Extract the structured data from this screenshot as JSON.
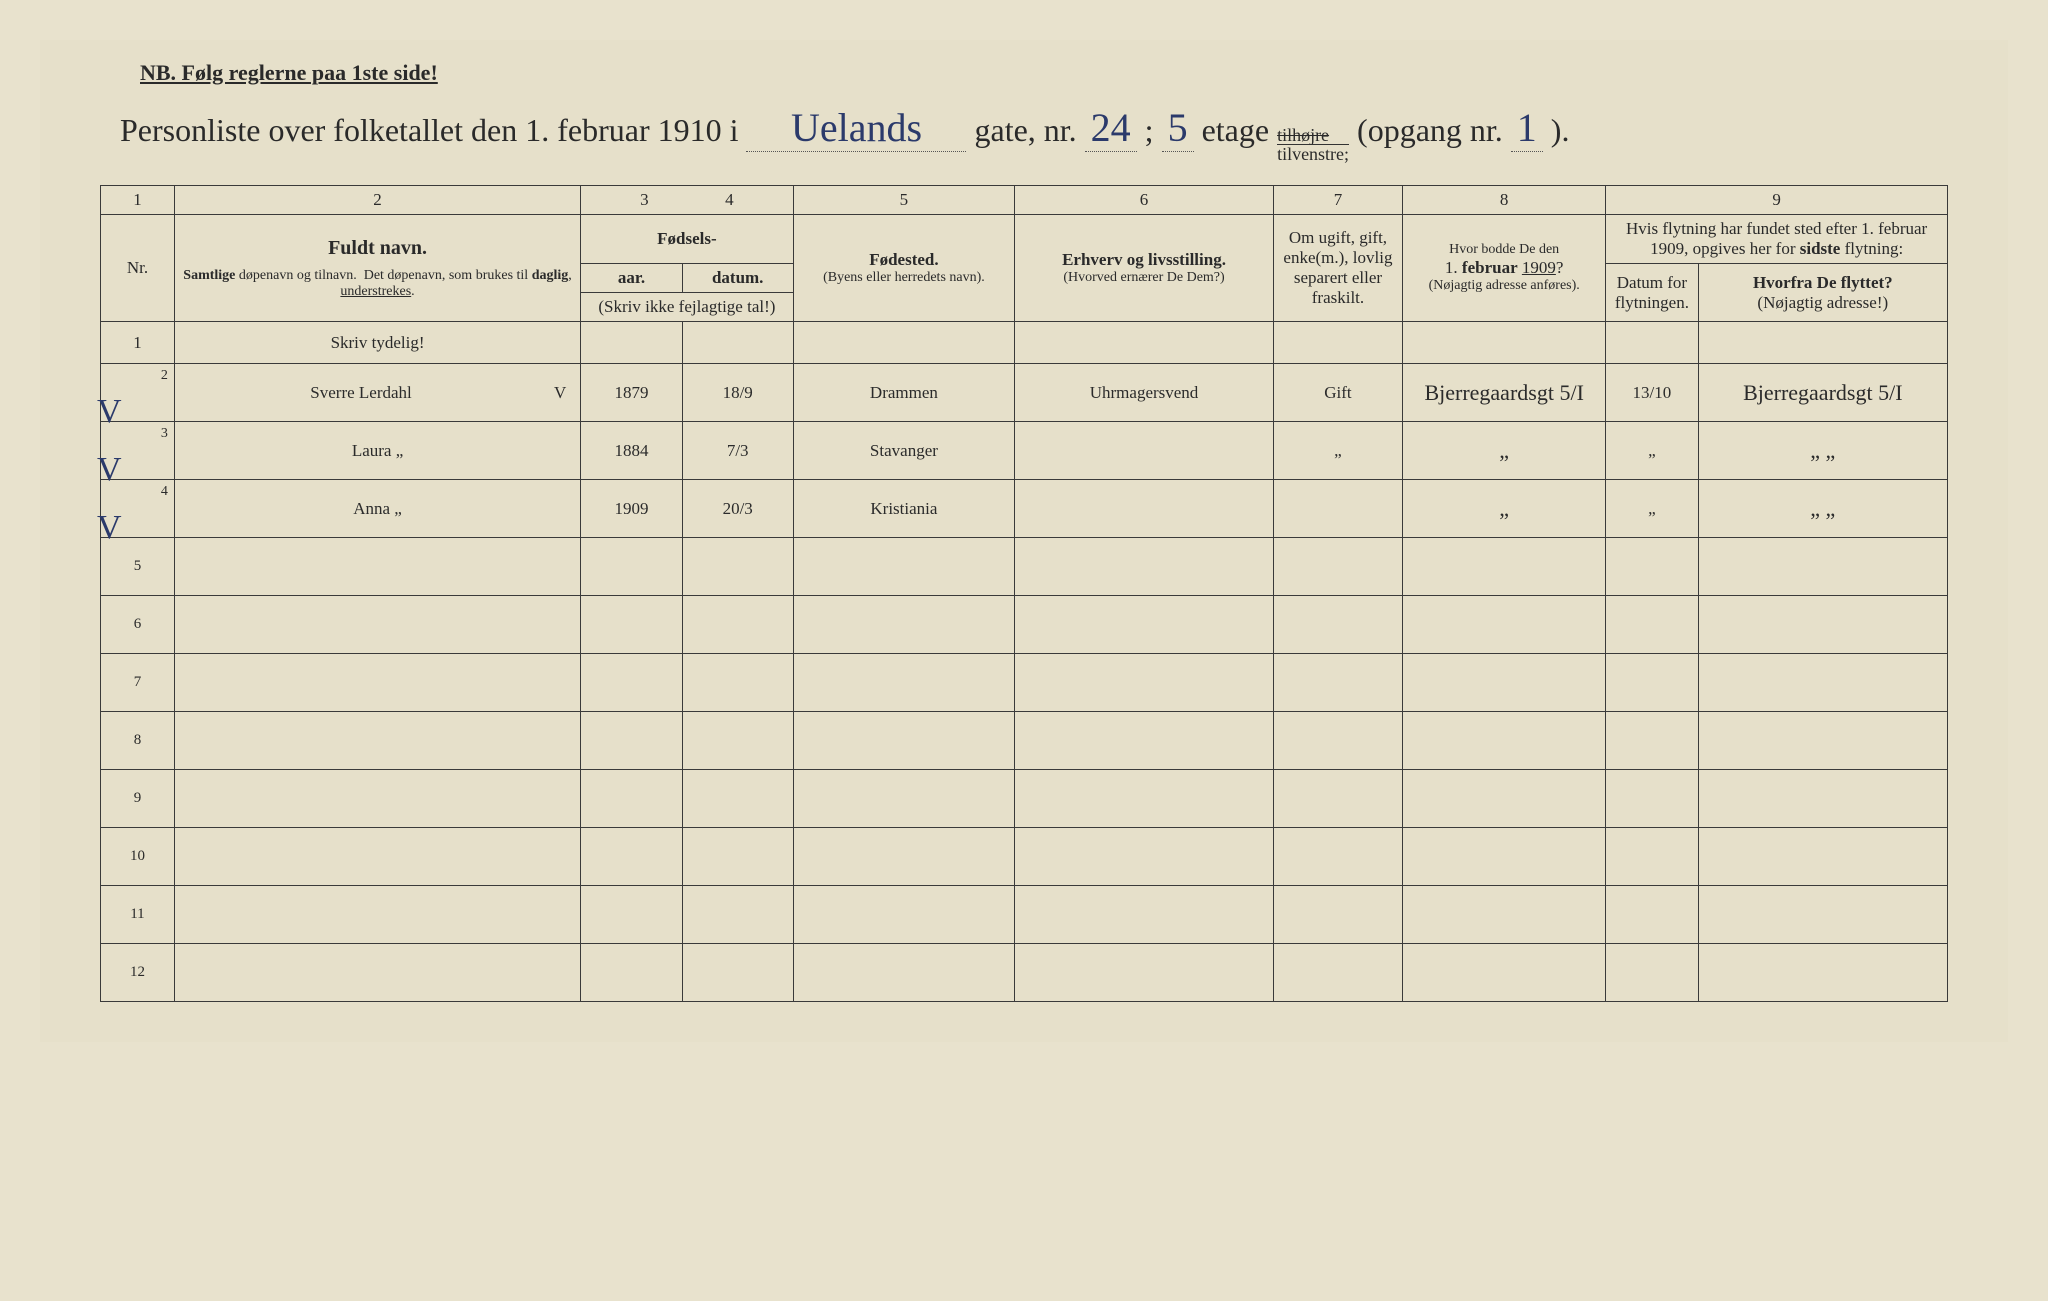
{
  "nb": "NB.  Følg reglerne paa 1ste side!",
  "title": {
    "prefix": "Personliste over folketallet den 1. februar 1910 i",
    "street": "Uelands",
    "gate_lbl": "gate, nr.",
    "gate_nr": "24",
    "semi": ";",
    "floor": "5",
    "etage_lbl": "etage",
    "tilhojre": "tilhøjre",
    "tilvenstre": "tilvenstre;",
    "opgang_lbl": "(opgang nr.",
    "opgang_nr": "1",
    "close": ")."
  },
  "colnums": [
    "1",
    "2",
    "3",
    "4",
    "5",
    "6",
    "7",
    "8",
    "9"
  ],
  "headers": {
    "nr": "Nr.",
    "name1": "Fuldt navn.",
    "name2": "Samtlige døpenavn og tilnavn.  Det døpenavn, som brukes til daglig, understrekes.",
    "fod": "Fødsels-",
    "aar": "aar.",
    "datum": "datum.",
    "fod_note": "(Skriv ikke fejlagtige tal!)",
    "bp1": "Fødested.",
    "bp2": "(Byens eller herredets navn).",
    "occ1": "Erhverv og livsstilling.",
    "occ2": "(Hvorved ernærer De Dem?)",
    "mar": "Om ugift, gift, enke(m.), lovlig separert eller fraskilt.",
    "r1909a": "Hvor bodde De den",
    "r1909b": "1. februar 1909?",
    "r1909c": "(Nøjagtig adresse anføres).",
    "mv_top": "Hvis flytning har fundet sted efter 1. februar 1909, opgives her for sidste flytning:",
    "mv_dat": "Datum for flytningen.",
    "mv_from1": "Hvorfra De flyttet?",
    "mv_from2": "(Nøjagtig adresse!)"
  },
  "hint": "Skriv tydelig!",
  "rows": [
    {
      "nr": "2",
      "chk": "V",
      "name": "Sverre Lerdahl",
      "v": "V",
      "yr": "1879",
      "dat": "18/9",
      "bp": "Drammen",
      "occ": "Uhrmagersvend",
      "mar": "Gift",
      "r1909": "Bjerregaardsgt 5/I",
      "mvd": "13/10",
      "from": "Bjerregaardsgt 5/I"
    },
    {
      "nr": "3",
      "chk": "V",
      "name": "Laura     „",
      "v": "",
      "yr": "1884",
      "dat": "7/3",
      "bp": "Stavanger",
      "occ": "",
      "mar": "„",
      "r1909": "„",
      "mvd": "„",
      "from": "„   „"
    },
    {
      "nr": "4",
      "chk": "V",
      "name": "Anna     „",
      "v": "",
      "yr": "1909",
      "dat": "20/3",
      "bp": "Kristiania",
      "occ": "",
      "mar": "",
      "r1909": "„",
      "mvd": "„",
      "from": "„   „"
    }
  ],
  "blank_nrs": [
    "5",
    "6",
    "7",
    "8",
    "9",
    "10",
    "11",
    "12"
  ]
}
